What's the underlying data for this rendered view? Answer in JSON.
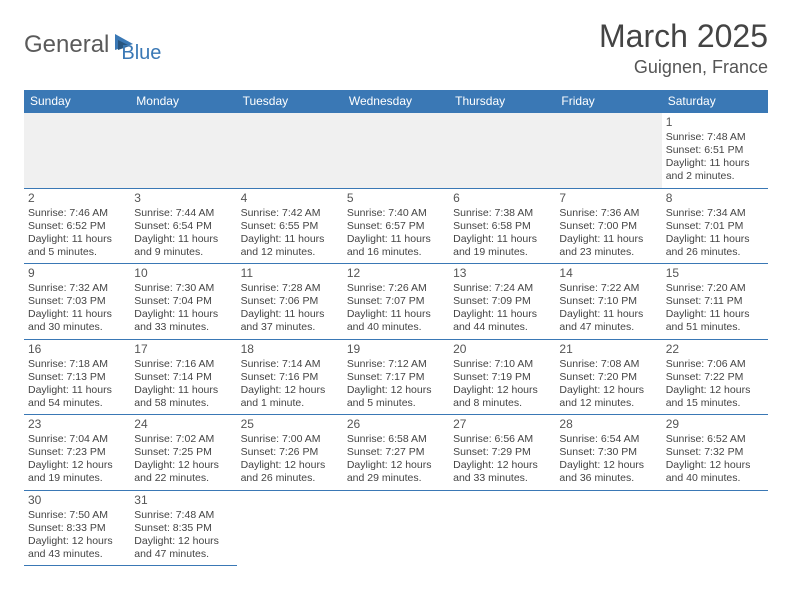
{
  "logo": {
    "part1": "General",
    "part2": "Blue"
  },
  "title": "March 2025",
  "location": "Guignen, France",
  "colors": {
    "header_bg": "#3a78b5",
    "header_text": "#ffffff",
    "border": "#3a78b5",
    "empty_bg": "#f0f0f0",
    "text": "#444444",
    "logo_gray": "#5a5a5a",
    "logo_blue": "#3a78b5"
  },
  "weekdays": [
    "Sunday",
    "Monday",
    "Tuesday",
    "Wednesday",
    "Thursday",
    "Friday",
    "Saturday"
  ],
  "weeks": [
    [
      null,
      null,
      null,
      null,
      null,
      null,
      {
        "n": "1",
        "sr": "Sunrise: 7:48 AM",
        "ss": "Sunset: 6:51 PM",
        "d1": "Daylight: 11 hours",
        "d2": "and 2 minutes."
      }
    ],
    [
      {
        "n": "2",
        "sr": "Sunrise: 7:46 AM",
        "ss": "Sunset: 6:52 PM",
        "d1": "Daylight: 11 hours",
        "d2": "and 5 minutes."
      },
      {
        "n": "3",
        "sr": "Sunrise: 7:44 AM",
        "ss": "Sunset: 6:54 PM",
        "d1": "Daylight: 11 hours",
        "d2": "and 9 minutes."
      },
      {
        "n": "4",
        "sr": "Sunrise: 7:42 AM",
        "ss": "Sunset: 6:55 PM",
        "d1": "Daylight: 11 hours",
        "d2": "and 12 minutes."
      },
      {
        "n": "5",
        "sr": "Sunrise: 7:40 AM",
        "ss": "Sunset: 6:57 PM",
        "d1": "Daylight: 11 hours",
        "d2": "and 16 minutes."
      },
      {
        "n": "6",
        "sr": "Sunrise: 7:38 AM",
        "ss": "Sunset: 6:58 PM",
        "d1": "Daylight: 11 hours",
        "d2": "and 19 minutes."
      },
      {
        "n": "7",
        "sr": "Sunrise: 7:36 AM",
        "ss": "Sunset: 7:00 PM",
        "d1": "Daylight: 11 hours",
        "d2": "and 23 minutes."
      },
      {
        "n": "8",
        "sr": "Sunrise: 7:34 AM",
        "ss": "Sunset: 7:01 PM",
        "d1": "Daylight: 11 hours",
        "d2": "and 26 minutes."
      }
    ],
    [
      {
        "n": "9",
        "sr": "Sunrise: 7:32 AM",
        "ss": "Sunset: 7:03 PM",
        "d1": "Daylight: 11 hours",
        "d2": "and 30 minutes."
      },
      {
        "n": "10",
        "sr": "Sunrise: 7:30 AM",
        "ss": "Sunset: 7:04 PM",
        "d1": "Daylight: 11 hours",
        "d2": "and 33 minutes."
      },
      {
        "n": "11",
        "sr": "Sunrise: 7:28 AM",
        "ss": "Sunset: 7:06 PM",
        "d1": "Daylight: 11 hours",
        "d2": "and 37 minutes."
      },
      {
        "n": "12",
        "sr": "Sunrise: 7:26 AM",
        "ss": "Sunset: 7:07 PM",
        "d1": "Daylight: 11 hours",
        "d2": "and 40 minutes."
      },
      {
        "n": "13",
        "sr": "Sunrise: 7:24 AM",
        "ss": "Sunset: 7:09 PM",
        "d1": "Daylight: 11 hours",
        "d2": "and 44 minutes."
      },
      {
        "n": "14",
        "sr": "Sunrise: 7:22 AM",
        "ss": "Sunset: 7:10 PM",
        "d1": "Daylight: 11 hours",
        "d2": "and 47 minutes."
      },
      {
        "n": "15",
        "sr": "Sunrise: 7:20 AM",
        "ss": "Sunset: 7:11 PM",
        "d1": "Daylight: 11 hours",
        "d2": "and 51 minutes."
      }
    ],
    [
      {
        "n": "16",
        "sr": "Sunrise: 7:18 AM",
        "ss": "Sunset: 7:13 PM",
        "d1": "Daylight: 11 hours",
        "d2": "and 54 minutes."
      },
      {
        "n": "17",
        "sr": "Sunrise: 7:16 AM",
        "ss": "Sunset: 7:14 PM",
        "d1": "Daylight: 11 hours",
        "d2": "and 58 minutes."
      },
      {
        "n": "18",
        "sr": "Sunrise: 7:14 AM",
        "ss": "Sunset: 7:16 PM",
        "d1": "Daylight: 12 hours",
        "d2": "and 1 minute."
      },
      {
        "n": "19",
        "sr": "Sunrise: 7:12 AM",
        "ss": "Sunset: 7:17 PM",
        "d1": "Daylight: 12 hours",
        "d2": "and 5 minutes."
      },
      {
        "n": "20",
        "sr": "Sunrise: 7:10 AM",
        "ss": "Sunset: 7:19 PM",
        "d1": "Daylight: 12 hours",
        "d2": "and 8 minutes."
      },
      {
        "n": "21",
        "sr": "Sunrise: 7:08 AM",
        "ss": "Sunset: 7:20 PM",
        "d1": "Daylight: 12 hours",
        "d2": "and 12 minutes."
      },
      {
        "n": "22",
        "sr": "Sunrise: 7:06 AM",
        "ss": "Sunset: 7:22 PM",
        "d1": "Daylight: 12 hours",
        "d2": "and 15 minutes."
      }
    ],
    [
      {
        "n": "23",
        "sr": "Sunrise: 7:04 AM",
        "ss": "Sunset: 7:23 PM",
        "d1": "Daylight: 12 hours",
        "d2": "and 19 minutes."
      },
      {
        "n": "24",
        "sr": "Sunrise: 7:02 AM",
        "ss": "Sunset: 7:25 PM",
        "d1": "Daylight: 12 hours",
        "d2": "and 22 minutes."
      },
      {
        "n": "25",
        "sr": "Sunrise: 7:00 AM",
        "ss": "Sunset: 7:26 PM",
        "d1": "Daylight: 12 hours",
        "d2": "and 26 minutes."
      },
      {
        "n": "26",
        "sr": "Sunrise: 6:58 AM",
        "ss": "Sunset: 7:27 PM",
        "d1": "Daylight: 12 hours",
        "d2": "and 29 minutes."
      },
      {
        "n": "27",
        "sr": "Sunrise: 6:56 AM",
        "ss": "Sunset: 7:29 PM",
        "d1": "Daylight: 12 hours",
        "d2": "and 33 minutes."
      },
      {
        "n": "28",
        "sr": "Sunrise: 6:54 AM",
        "ss": "Sunset: 7:30 PM",
        "d1": "Daylight: 12 hours",
        "d2": "and 36 minutes."
      },
      {
        "n": "29",
        "sr": "Sunrise: 6:52 AM",
        "ss": "Sunset: 7:32 PM",
        "d1": "Daylight: 12 hours",
        "d2": "and 40 minutes."
      }
    ],
    [
      {
        "n": "30",
        "sr": "Sunrise: 7:50 AM",
        "ss": "Sunset: 8:33 PM",
        "d1": "Daylight: 12 hours",
        "d2": "and 43 minutes."
      },
      {
        "n": "31",
        "sr": "Sunrise: 7:48 AM",
        "ss": "Sunset: 8:35 PM",
        "d1": "Daylight: 12 hours",
        "d2": "and 47 minutes."
      },
      null,
      null,
      null,
      null,
      null
    ]
  ]
}
